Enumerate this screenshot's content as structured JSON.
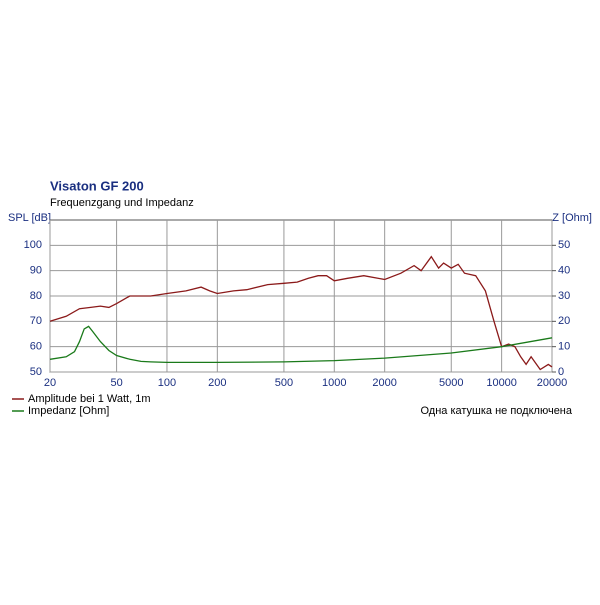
{
  "chart_data": {
    "type": "line",
    "title": "Visaton GF 200",
    "subtitle": "Frequenzgang und Impedanz",
    "y_label": "SPL [dB]",
    "y2_label": "Z [Ohm]",
    "annotation": "Одна катушка не подключена",
    "xscale": "log",
    "xlim": [
      20,
      20000
    ],
    "xticks": [
      20,
      50,
      100,
      200,
      500,
      1000,
      2000,
      5000,
      10000,
      20000
    ],
    "ylim": [
      50,
      110
    ],
    "yticks": [
      50,
      60,
      70,
      80,
      90,
      100
    ],
    "y2lim": [
      0,
      60
    ],
    "y2ticks": [
      0,
      10,
      20,
      30,
      40,
      50
    ],
    "grid": true,
    "legend": "bottom-left",
    "series": [
      {
        "name": "Amplitude bei 1 Watt, 1m",
        "color": "#8b1a1a",
        "x": [
          20,
          25,
          30,
          35,
          40,
          45,
          50,
          60,
          70,
          80,
          100,
          130,
          160,
          180,
          200,
          250,
          300,
          400,
          500,
          600,
          700,
          800,
          900,
          1000,
          1200,
          1500,
          2000,
          2500,
          3000,
          3300,
          3800,
          4200,
          4500,
          5000,
          5500,
          6000,
          7000,
          8000,
          9000,
          10000,
          11000,
          12000,
          13000,
          14000,
          15000,
          17000,
          19000,
          20000
        ],
        "values": [
          70,
          72,
          75,
          75.5,
          76,
          75.5,
          77,
          80,
          80,
          80,
          81,
          82,
          83.5,
          82,
          81,
          82,
          82.5,
          84.5,
          85,
          85.5,
          87,
          88,
          88,
          86,
          87,
          88,
          86.5,
          89,
          92,
          90,
          95.5,
          91,
          93,
          91,
          92.5,
          89,
          88,
          82,
          70,
          60,
          61,
          60,
          56,
          53,
          56,
          51,
          53,
          52
        ]
      },
      {
        "name": "Impedanz [Ohm]",
        "color": "#1a7a1a",
        "axis": "y2",
        "x": [
          20,
          25,
          28,
          30,
          32,
          34,
          36,
          40,
          45,
          50,
          60,
          70,
          80,
          100,
          200,
          500,
          1000,
          2000,
          5000,
          10000,
          20000
        ],
        "values": [
          5,
          6,
          8,
          12,
          17,
          18,
          16,
          12,
          8.5,
          6.5,
          5,
          4.2,
          4,
          3.8,
          3.8,
          4,
          4.5,
          5.5,
          7.5,
          10,
          13.5
        ]
      }
    ]
  }
}
